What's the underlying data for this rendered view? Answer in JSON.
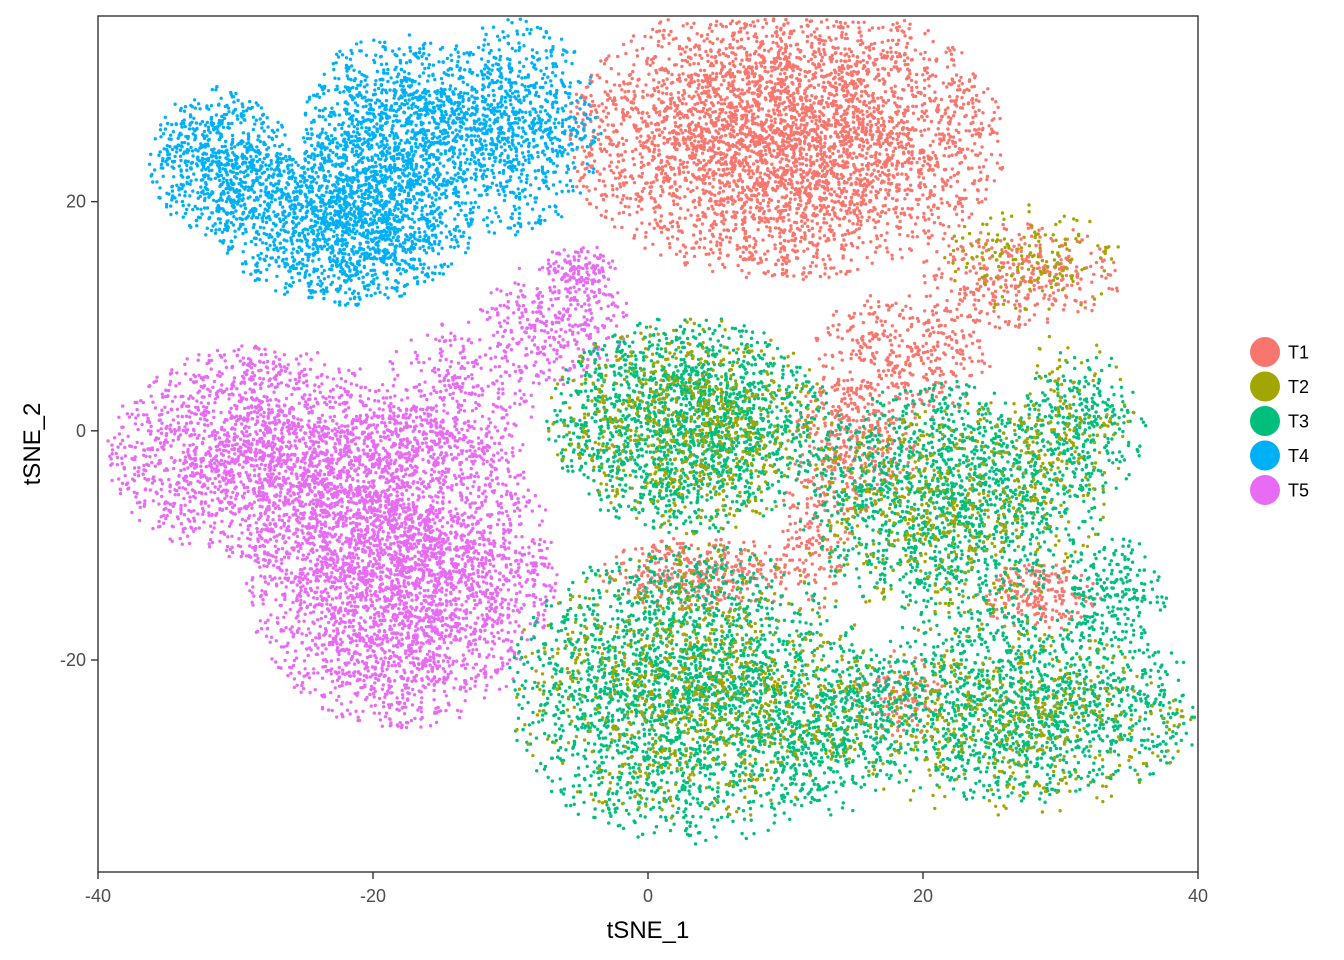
{
  "chart_data": {
    "type": "scatter",
    "title": "",
    "xlabel": "tSNE_1",
    "ylabel": "tSNE_2",
    "xlim": [
      -40.0,
      40.0
    ],
    "ylim": [
      -38.5,
      36.2
    ],
    "x_ticks": [
      -40,
      -20,
      0,
      20,
      40
    ],
    "y_ticks": [
      -20,
      0,
      20
    ],
    "x_tick_labels": [
      "-40",
      "-20",
      "0",
      "20",
      "40"
    ],
    "y_tick_labels": [
      "-20",
      "0",
      "20"
    ],
    "grid": false,
    "legend_position": "right",
    "series": [
      {
        "name": "T1",
        "color": "#F8766D",
        "clusters": [
          {
            "cx": 10,
            "cy": 25.5,
            "sx": 8.5,
            "sy": 6.5,
            "n": 4200
          },
          {
            "cx": 18.5,
            "cy": 6.5,
            "sx": 3.5,
            "sy": 3.0,
            "n": 400
          },
          {
            "cx": 15,
            "cy": -1,
            "sx": 2.5,
            "sy": 3.5,
            "n": 350
          },
          {
            "cx": 27,
            "cy": 13.5,
            "sx": 4,
            "sy": 2.5,
            "n": 350
          },
          {
            "cx": 4,
            "cy": -12.5,
            "sx": 4,
            "sy": 1.8,
            "n": 350
          },
          {
            "cx": 28.5,
            "cy": -14.5,
            "sx": 2.5,
            "sy": 1.6,
            "n": 200
          },
          {
            "cx": 18,
            "cy": -23,
            "sx": 2,
            "sy": 2,
            "n": 120
          },
          {
            "cx": 12,
            "cy": -10,
            "sx": 1.5,
            "sy": 3.5,
            "n": 140
          }
        ]
      },
      {
        "name": "T2",
        "color": "#A3A500",
        "clusters": [
          {
            "cx": 3,
            "cy": 0.5,
            "sx": 5.5,
            "sy": 5,
            "n": 650
          },
          {
            "cx": 3,
            "cy": -22,
            "sx": 7,
            "sy": 6.5,
            "n": 800
          },
          {
            "cx": 22,
            "cy": -7,
            "sx": 6,
            "sy": 5,
            "n": 500
          },
          {
            "cx": 26,
            "cy": -25,
            "sx": 7.5,
            "sy": 4.5,
            "n": 500
          },
          {
            "cx": 30,
            "cy": 1,
            "sx": 3,
            "sy": 4,
            "n": 150
          },
          {
            "cx": 28,
            "cy": 15,
            "sx": 3.5,
            "sy": 2.5,
            "n": 160
          }
        ]
      },
      {
        "name": "T3",
        "color": "#00BF7D",
        "clusters": [
          {
            "cx": 3,
            "cy": 0.5,
            "sx": 5.5,
            "sy": 5,
            "n": 1800
          },
          {
            "cx": 3,
            "cy": -23,
            "sx": 7,
            "sy": 7,
            "n": 2400
          },
          {
            "cx": 22,
            "cy": -6,
            "sx": 6,
            "sy": 5.5,
            "n": 1500
          },
          {
            "cx": 27,
            "cy": -24,
            "sx": 7.5,
            "sy": 4.5,
            "n": 1500
          },
          {
            "cx": 31.5,
            "cy": 0.5,
            "sx": 2.5,
            "sy": 3.5,
            "n": 300
          },
          {
            "cx": 34,
            "cy": -14,
            "sx": 2,
            "sy": 2.5,
            "n": 200
          },
          {
            "cx": 13,
            "cy": -27,
            "sx": 3,
            "sy": 3.5,
            "n": 300
          }
        ]
      },
      {
        "name": "T4",
        "color": "#00B0F6",
        "clusters": [
          {
            "cx": -31,
            "cy": 23.5,
            "sx": 2.8,
            "sy": 3.5,
            "n": 700
          },
          {
            "cx": -22,
            "cy": 18.5,
            "sx": 5,
            "sy": 4,
            "n": 1800
          },
          {
            "cx": -18,
            "cy": 27,
            "sx": 4,
            "sy": 4,
            "n": 1000
          },
          {
            "cx": -10,
            "cy": 26.5,
            "sx": 3.5,
            "sy": 5,
            "n": 900
          }
        ]
      },
      {
        "name": "T5",
        "color": "#E76BF3",
        "clusters": [
          {
            "cx": -28,
            "cy": -2,
            "sx": 6,
            "sy": 5,
            "n": 2000
          },
          {
            "cx": -18,
            "cy": -12,
            "sx": 6,
            "sy": 7.5,
            "n": 3600
          },
          {
            "cx": -14,
            "cy": 2,
            "sx": 3,
            "sy": 4,
            "n": 400
          },
          {
            "cx": -7,
            "cy": 9.5,
            "sx": 3,
            "sy": 3,
            "n": 350
          },
          {
            "cx": -5,
            "cy": 14,
            "sx": 1.5,
            "sy": 1.2,
            "n": 120
          }
        ]
      }
    ]
  }
}
